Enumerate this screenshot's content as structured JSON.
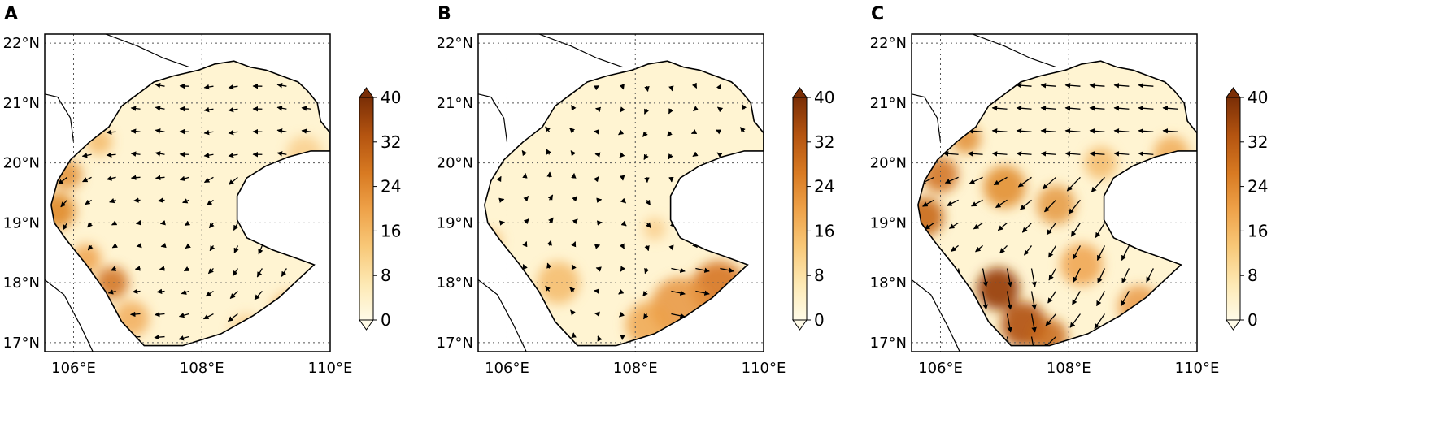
{
  "figure": {
    "panels": [
      {
        "letter": "A",
        "variant": "a"
      },
      {
        "letter": "B",
        "variant": "b"
      },
      {
        "letter": "C",
        "variant": "c"
      }
    ],
    "lat_labels": [
      "22°N",
      "21°N",
      "20°N",
      "19°N",
      "18°N",
      "17°N"
    ],
    "lon_labels": [
      "106°E",
      "108°E",
      "110°E"
    ],
    "lat_values": [
      22,
      21,
      20,
      19,
      18,
      17
    ],
    "lon_values": [
      106,
      108,
      110
    ],
    "extent": {
      "lon": [
        105.55,
        110.0
      ],
      "lat": [
        16.85,
        22.15
      ]
    },
    "colorbar": {
      "ticks": [
        "40",
        "32",
        "24",
        "16",
        "8",
        "0"
      ],
      "tick_values": [
        40,
        32,
        24,
        16,
        8,
        0
      ],
      "range": [
        0,
        40
      ],
      "colors": [
        "#fffbe8",
        "#fde9b4",
        "#f8c878",
        "#eea148",
        "#d87a22",
        "#b45410",
        "#7a2e06"
      ]
    },
    "style": {
      "grid": "dotted",
      "land": "#ffffff",
      "coast": "#000000",
      "arrow": "#000000"
    }
  }
}
